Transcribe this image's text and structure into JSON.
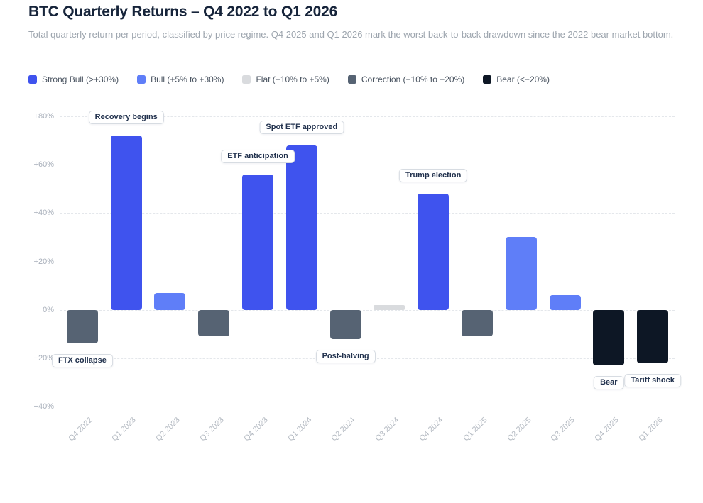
{
  "header": {
    "title": "BTC Quarterly Returns – Q4 2022 to Q1 2026",
    "subtitle": "Total quarterly return per period, classified by price regime. Q4 2025 and Q1 2026 mark the worst back-to-back drawdown since the 2022 bear market bottom."
  },
  "colors": {
    "strong_bull": "#3f53ee",
    "bull": "#5f7ef8",
    "flat": "#d9dbde",
    "correction": "#566373",
    "bear": "#0d1725",
    "title_text": "#16243a",
    "subtitle_text": "#9da5ae",
    "axis_text": "#a9b0bb",
    "grid_line": "#e4e7eb",
    "annotation_text": "#22324e"
  },
  "legend": {
    "items": [
      {
        "label": "Strong Bull (>+30%)",
        "regime": "strong_bull"
      },
      {
        "label": "Bull (+5% to +30%)",
        "regime": "bull"
      },
      {
        "label": "Flat (−10% to +5%)",
        "regime": "flat"
      },
      {
        "label": "Correction (−10% to −20%)",
        "regime": "correction"
      },
      {
        "label": "Bear (<−20%)",
        "regime": "bear"
      }
    ]
  },
  "chart_data": {
    "type": "bar",
    "title": "BTC Quarterly Returns – Q4 2022 to Q1 2026",
    "unit": "%",
    "categories": [
      "Q4 2022",
      "Q1 2023",
      "Q2 2023",
      "Q3 2023",
      "Q4 2023",
      "Q1 2024",
      "Q2 2024",
      "Q3 2024",
      "Q4 2024",
      "Q1 2025",
      "Q2 2025",
      "Q3 2025",
      "Q4 2025",
      "Q1 2026"
    ],
    "values": [
      -14,
      72,
      7,
      -11,
      56,
      68,
      -12,
      2,
      48,
      -11,
      30,
      6,
      -23,
      -22
    ],
    "regimes": [
      "correction",
      "strong_bull",
      "bull",
      "correction",
      "strong_bull",
      "strong_bull",
      "correction",
      "flat",
      "strong_bull",
      "correction",
      "bull",
      "bull",
      "bear",
      "bear"
    ],
    "ylim": [
      -40,
      80
    ],
    "yticks": [
      {
        "value": 80,
        "label": "+80%"
      },
      {
        "value": 60,
        "label": "+60%"
      },
      {
        "value": 40,
        "label": "+40%"
      },
      {
        "value": 20,
        "label": "+20%"
      },
      {
        "value": 0,
        "label": "0%"
      },
      {
        "value": -20,
        "label": "−20%"
      },
      {
        "value": -40,
        "label": "−40%"
      }
    ],
    "grid": "horizontal-dashed",
    "legend_position": "top",
    "annotations": [
      {
        "text": "FTX collapse",
        "category": "Q4 2022",
        "placement": "below"
      },
      {
        "text": "Recovery begins",
        "category": "Q1 2023",
        "placement": "above"
      },
      {
        "text": "ETF anticipation",
        "category": "Q4 2023",
        "placement": "above"
      },
      {
        "text": "Spot ETF approved",
        "category": "Q1 2024",
        "placement": "above"
      },
      {
        "text": "Post-halving",
        "category": "Q2 2024",
        "placement": "below"
      },
      {
        "text": "Trump election",
        "category": "Q4 2024",
        "placement": "above"
      },
      {
        "text": "Bear",
        "category": "Q4 2025",
        "placement": "below"
      },
      {
        "text": "Tariff shock",
        "category": "Q1 2026",
        "placement": "below"
      }
    ]
  }
}
